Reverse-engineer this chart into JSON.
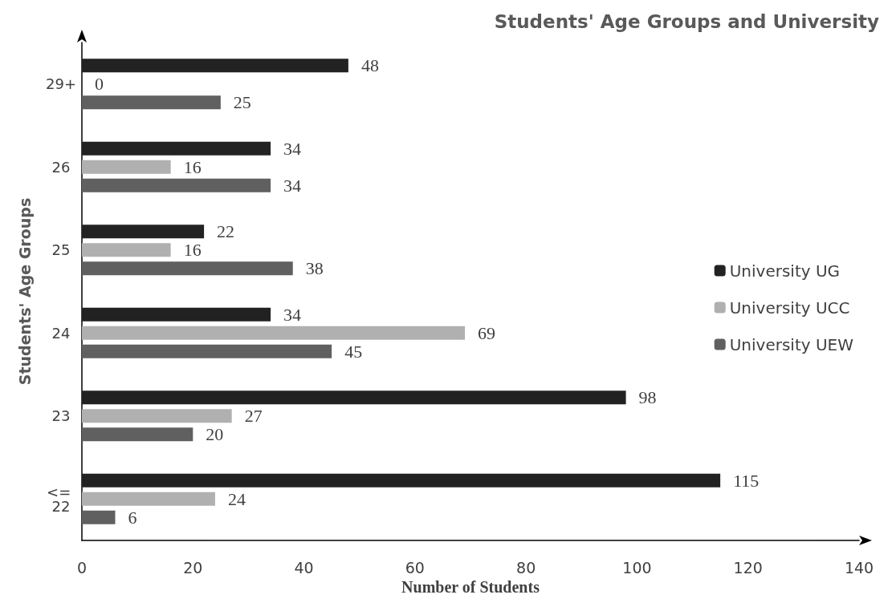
{
  "chart_data": {
    "type": "bar",
    "orientation": "horizontal",
    "title": "Students' Age Groups and University",
    "xlabel": "Number of Students",
    "ylabel": "Students' Age Groups",
    "categories": [
      "29+",
      "26",
      "25",
      "24",
      "23",
      "<= 22"
    ],
    "series": [
      {
        "name": "University UG",
        "color": "#222222",
        "values": [
          48,
          34,
          22,
          34,
          98,
          115
        ]
      },
      {
        "name": "University UCC",
        "color": "#b0b0b0",
        "values": [
          0,
          16,
          16,
          69,
          27,
          24
        ]
      },
      {
        "name": "University UEW",
        "color": "#606060",
        "values": [
          25,
          34,
          38,
          45,
          20,
          6
        ]
      }
    ],
    "xlim": [
      0,
      140
    ],
    "xticks": [
      0,
      20,
      40,
      60,
      80,
      100,
      120,
      140
    ],
    "grid": false,
    "legend": "right",
    "data_labels": true
  }
}
